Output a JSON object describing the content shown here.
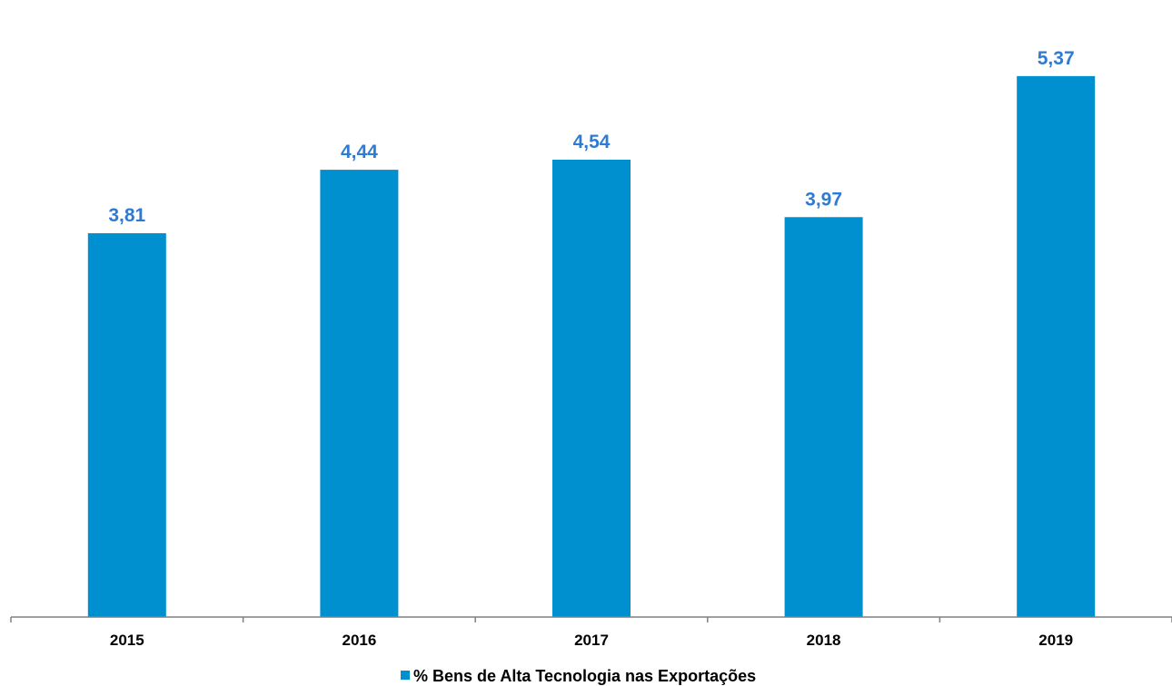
{
  "chart_data": {
    "type": "bar",
    "categories": [
      "2015",
      "2016",
      "2017",
      "2018",
      "2019"
    ],
    "series": [
      {
        "name": "% Bens de Alta Tecnologia nas Exportações",
        "values": [
          3.81,
          4.44,
          4.54,
          3.97,
          5.37
        ],
        "value_labels": [
          "3,81",
          "4,44",
          "4,54",
          "3,97",
          "5,37"
        ],
        "color": "#0090CF"
      }
    ],
    "ylim": [
      0,
      5.72
    ],
    "grid": false,
    "legend": "bottom-center",
    "data_label_color": "#2E7BD4",
    "axis_color": "#808080"
  }
}
